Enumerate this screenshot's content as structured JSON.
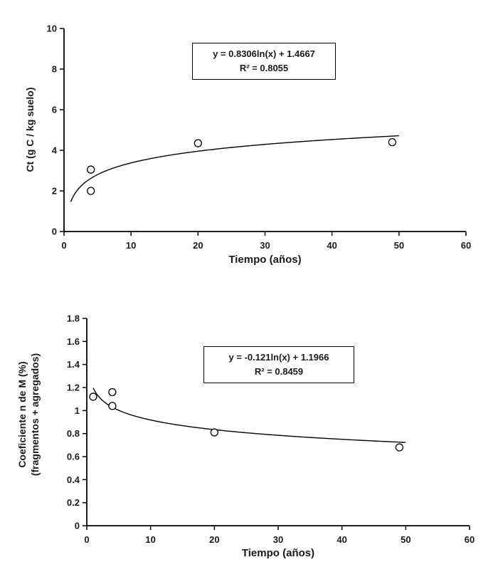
{
  "chart_data": [
    {
      "type": "scatter",
      "title": "",
      "xlabel": "Tiempo (años)",
      "ylabel": "Ct (g C / kg suelo)",
      "xlim": [
        0,
        60
      ],
      "ylim": [
        0,
        10
      ],
      "xticks": [
        0,
        10,
        20,
        30,
        40,
        50,
        60
      ],
      "yticks": [
        0,
        2,
        4,
        6,
        8,
        10
      ],
      "grid": false,
      "legend": "none",
      "points": [
        [
          4,
          3.05
        ],
        [
          4,
          2.0
        ],
        [
          20,
          4.35
        ],
        [
          49,
          4.4
        ]
      ],
      "trendline": {
        "type": "log",
        "a": 0.8306,
        "b": 1.4667,
        "x_start": 1,
        "x_end": 50
      },
      "equation": "y = 0.8306ln(x) + 1.4667",
      "r_squared": "R² = 0.8055"
    },
    {
      "type": "scatter",
      "title": "",
      "xlabel": "Tiempo (años)",
      "ylabel_lines": [
        "Coeficiente n de M (%)",
        "(fragmentos + agregados)"
      ],
      "xlim": [
        0,
        60
      ],
      "ylim": [
        0,
        1.8
      ],
      "xticks": [
        0,
        10,
        20,
        30,
        40,
        50,
        60
      ],
      "yticks": [
        0,
        0.2,
        0.4,
        0.6,
        0.8,
        1,
        1.2,
        1.4,
        1.6,
        1.8
      ],
      "grid": false,
      "legend": "none",
      "points": [
        [
          1,
          1.12
        ],
        [
          4,
          1.16
        ],
        [
          4,
          1.04
        ],
        [
          20,
          0.81
        ],
        [
          49,
          0.68
        ]
      ],
      "trendline": {
        "type": "log",
        "a": -0.121,
        "b": 1.1966,
        "x_start": 1,
        "x_end": 50
      },
      "equation": "y = -0.121ln(x) + 1.1966",
      "r_squared": "R² = 0.8459"
    }
  ],
  "style": {
    "marker_fill": "#ffffff",
    "marker_stroke": "#000000",
    "line_color": "#000000",
    "axis_color": "#000000",
    "text_color": "#1a1a1a"
  }
}
